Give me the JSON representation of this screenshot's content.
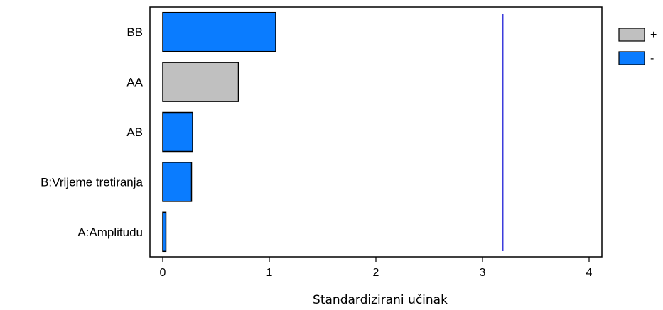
{
  "chart_data": {
    "type": "bar",
    "orientation": "horizontal",
    "categories": [
      "BB",
      "AA",
      "AB",
      "B:Vrijeme tretiranja",
      "A:Amplitudu"
    ],
    "values": [
      1.06,
      0.71,
      0.28,
      0.27,
      0.03
    ],
    "signs": [
      "-",
      "+",
      "-",
      "-",
      "-"
    ],
    "xlabel": "Standardizirani učinak",
    "xlim": [
      -0.12,
      4.12
    ],
    "xticks": [
      0,
      1,
      2,
      3,
      4
    ],
    "reference_line": 3.19,
    "legend": [
      {
        "label": "+",
        "color": "#c0c0c0"
      },
      {
        "label": "-",
        "color": "#0a7cff"
      }
    ],
    "legend_position": "top-right",
    "grid": false
  },
  "colors": {
    "positive": "#c0c0c0",
    "negative": "#0a7cff",
    "reference_line": "#3c3cdc",
    "axis": "#000000"
  }
}
